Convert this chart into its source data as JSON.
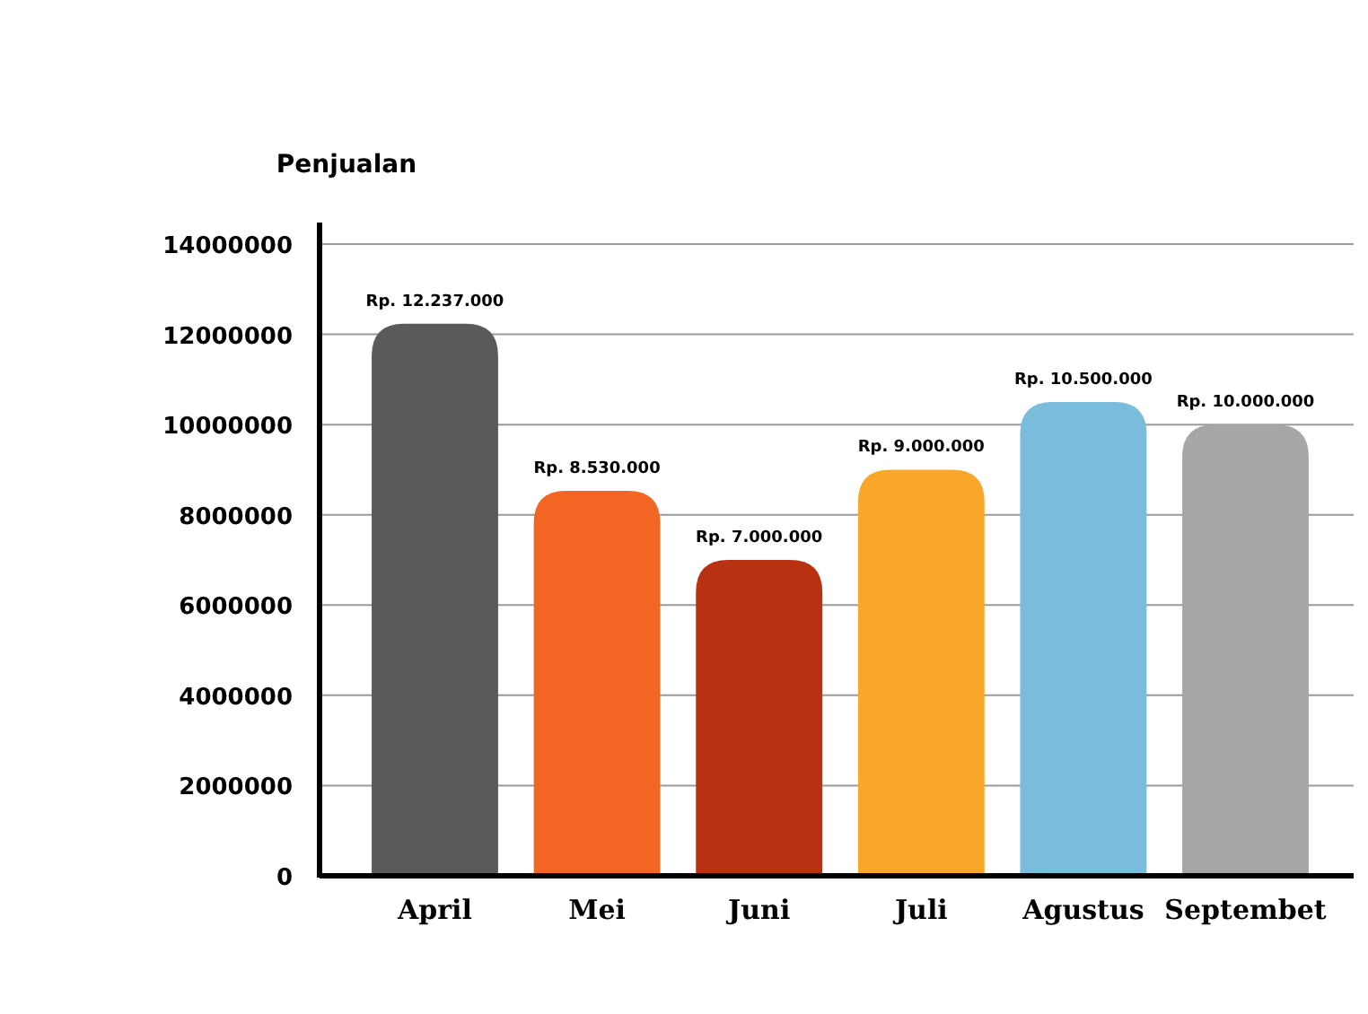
{
  "chart_data": {
    "type": "bar",
    "title": "Penjualan",
    "categories": [
      "April",
      "Mei",
      "Juni",
      "Juli",
      "Agustus",
      "Septembet"
    ],
    "values": [
      12237000,
      8530000,
      7000000,
      9000000,
      10500000,
      10000000
    ],
    "colors": [
      "#5a5a5a",
      "#f26522",
      "#b83212",
      "#f9a72b",
      "#79bcdc",
      "#a6a6a6"
    ],
    "value_labels": [
      "Rp. 12.237.000",
      "Rp. 8.530.000",
      "Rp. 7.000.000",
      "Rp. 9.000.000",
      "Rp. 10.500.000",
      "Rp. 10.000.000"
    ],
    "ylim": [
      0,
      14000000
    ],
    "yticks": [
      0,
      2000000,
      4000000,
      6000000,
      8000000,
      10000000,
      12000000,
      14000000
    ],
    "grid": "y"
  }
}
